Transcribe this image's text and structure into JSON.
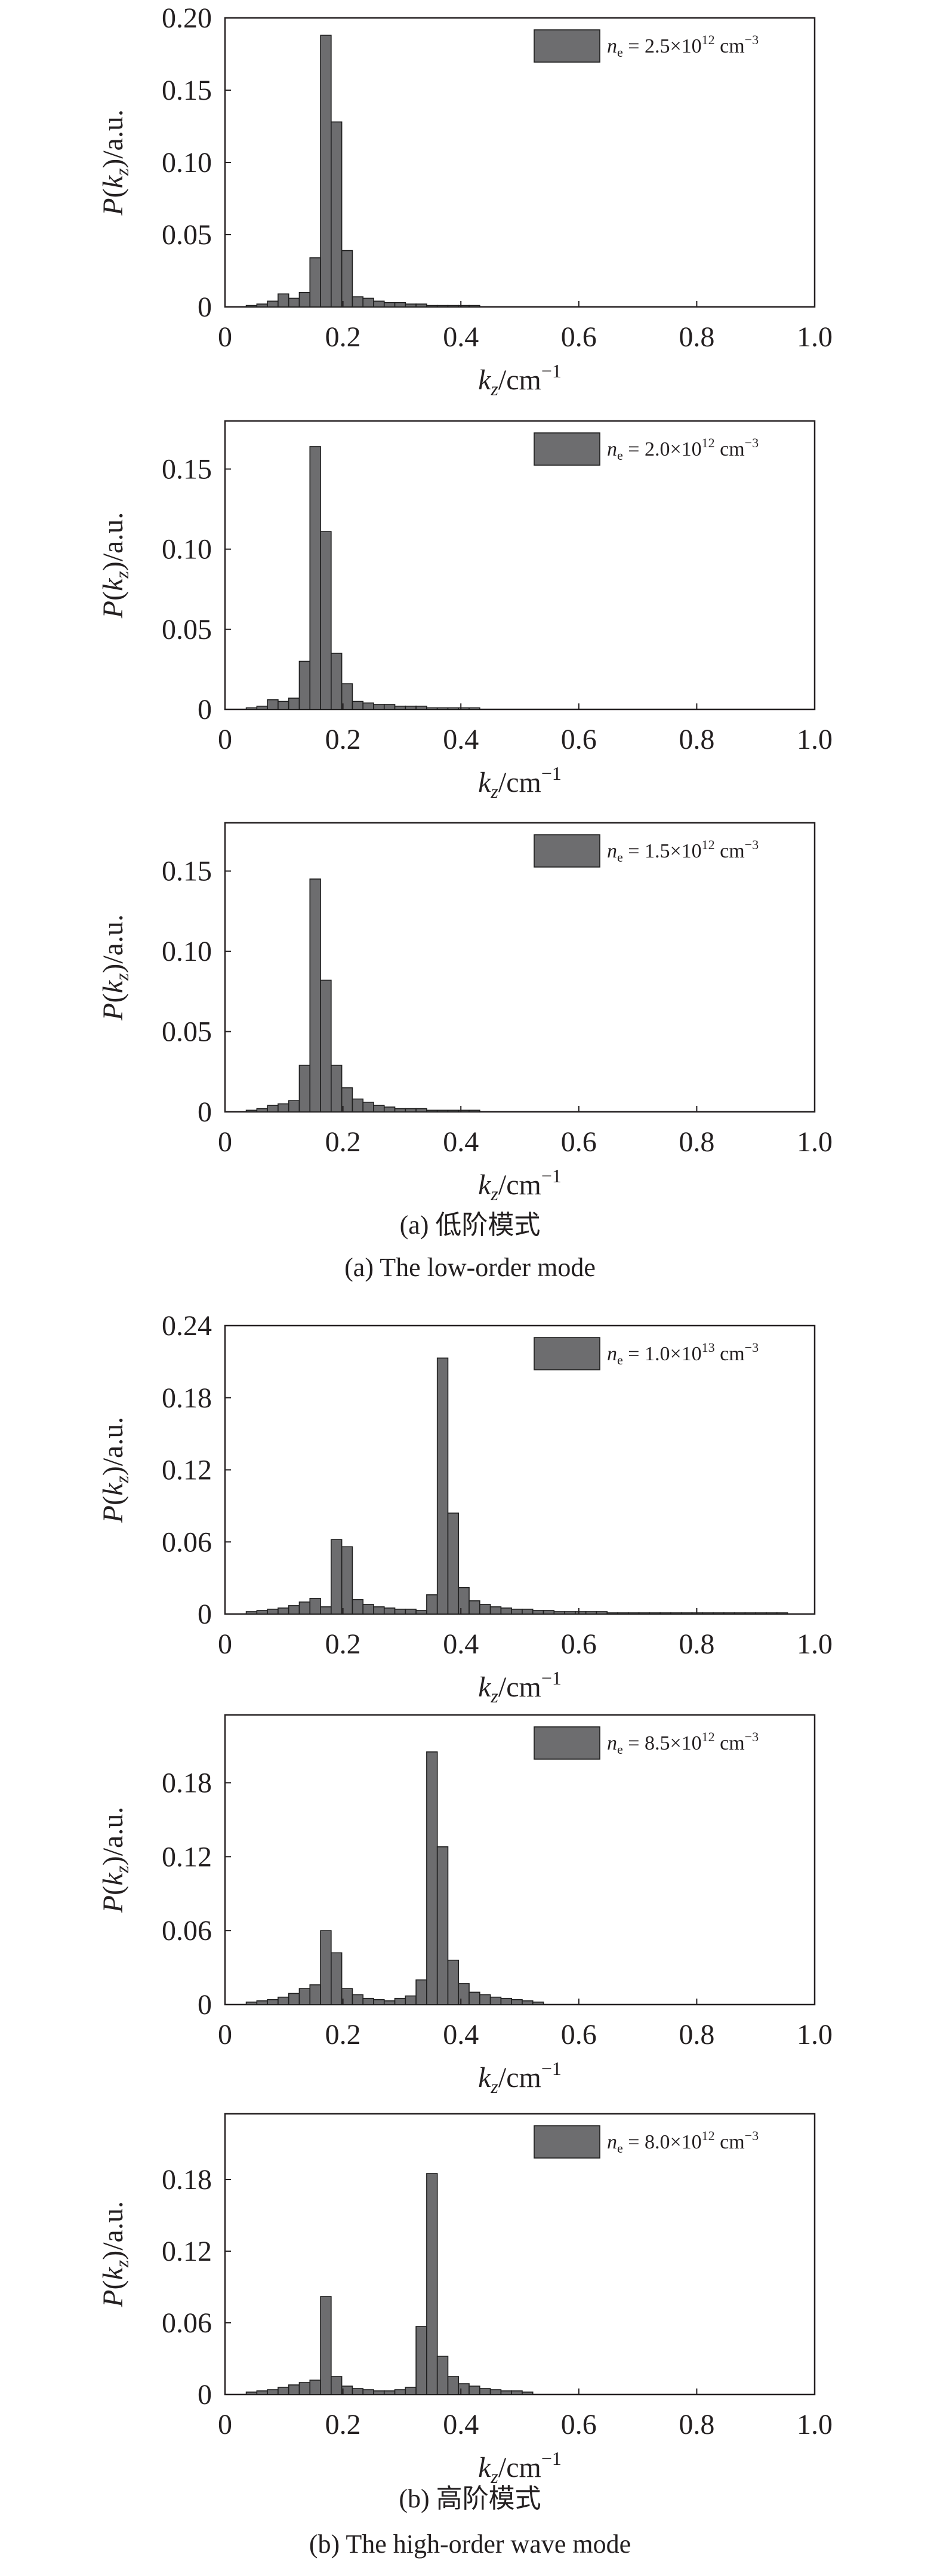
{
  "captions": {
    "a_cn": "(a) 低阶模式",
    "a_en": "(a) The low-order mode",
    "b_cn": "(b) 高阶模式",
    "b_en": "(b) The high-order wave mode"
  },
  "colors": {
    "bar_fill": "#6d6d6f",
    "bar_stroke": "#1f1f1f",
    "axis": "#231f20"
  },
  "chart_data": [
    {
      "type": "bar",
      "panel": "a-1",
      "xlim": [
        0,
        1.0
      ],
      "ylim": [
        0,
        0.2
      ],
      "xticks": [
        "0",
        "0.2",
        "0.4",
        "0.6",
        "0.8",
        "1.0"
      ],
      "yticks": [
        "0",
        "0.05",
        "0.10",
        "0.15",
        "0.20"
      ],
      "xlabel": "kz/cm−1",
      "ylabel": "P(kz)/a.u.",
      "legend": {
        "n": "n",
        "sub": "e",
        "text": " = 2.5×10",
        "exp": "12",
        "unit": " cm",
        "uexp": "−3"
      },
      "legend_placement": "top-right",
      "bin_width": 0.018,
      "x": [
        0.045,
        0.063,
        0.081,
        0.099,
        0.117,
        0.135,
        0.153,
        0.171,
        0.189,
        0.207,
        0.225,
        0.243,
        0.261,
        0.279,
        0.297,
        0.315,
        0.333,
        0.351,
        0.369,
        0.387,
        0.405,
        0.423
      ],
      "values": [
        0.001,
        0.002,
        0.004,
        0.009,
        0.006,
        0.01,
        0.034,
        0.188,
        0.128,
        0.039,
        0.007,
        0.006,
        0.004,
        0.003,
        0.003,
        0.002,
        0.002,
        0.001,
        0.001,
        0.001,
        0.001,
        0.001
      ]
    },
    {
      "type": "bar",
      "panel": "a-2",
      "xlim": [
        0,
        1.0
      ],
      "ylim": [
        0,
        0.18
      ],
      "xticks": [
        "0",
        "0.2",
        "0.4",
        "0.6",
        "0.8",
        "1.0"
      ],
      "yticks": [
        "0",
        "0.05",
        "0.10",
        "0.15"
      ],
      "xlabel": "kz/cm−1",
      "ylabel": "P(kz)/a.u.",
      "legend": {
        "n": "n",
        "sub": "e",
        "text": " = 2.0×10",
        "exp": "12",
        "unit": " cm",
        "uexp": "−3"
      },
      "legend_placement": "top-right",
      "bin_width": 0.018,
      "x": [
        0.045,
        0.063,
        0.081,
        0.099,
        0.117,
        0.135,
        0.153,
        0.171,
        0.189,
        0.207,
        0.225,
        0.243,
        0.261,
        0.279,
        0.297,
        0.315,
        0.333,
        0.351,
        0.369,
        0.387,
        0.405,
        0.423
      ],
      "values": [
        0.001,
        0.002,
        0.006,
        0.005,
        0.007,
        0.03,
        0.164,
        0.111,
        0.035,
        0.016,
        0.005,
        0.004,
        0.003,
        0.003,
        0.002,
        0.002,
        0.002,
        0.001,
        0.001,
        0.001,
        0.001,
        0.001
      ]
    },
    {
      "type": "bar",
      "panel": "a-3",
      "xlim": [
        0,
        1.0
      ],
      "ylim": [
        0,
        0.18
      ],
      "xticks": [
        "0",
        "0.2",
        "0.4",
        "0.6",
        "0.8",
        "1.0"
      ],
      "yticks": [
        "0",
        "0.05",
        "0.10",
        "0.15"
      ],
      "xlabel": "kz/cm−1",
      "ylabel": "P(kz)/a.u.",
      "legend": {
        "n": "n",
        "sub": "e",
        "text": " = 1.5×10",
        "exp": "12",
        "unit": " cm",
        "uexp": "−3"
      },
      "legend_placement": "top-right",
      "bin_width": 0.018,
      "x": [
        0.045,
        0.063,
        0.081,
        0.099,
        0.117,
        0.135,
        0.153,
        0.171,
        0.189,
        0.207,
        0.225,
        0.243,
        0.261,
        0.279,
        0.297,
        0.315,
        0.333,
        0.351,
        0.369,
        0.387,
        0.405,
        0.423
      ],
      "values": [
        0.001,
        0.002,
        0.004,
        0.005,
        0.007,
        0.029,
        0.145,
        0.082,
        0.029,
        0.015,
        0.008,
        0.006,
        0.004,
        0.003,
        0.002,
        0.002,
        0.002,
        0.001,
        0.001,
        0.001,
        0.001,
        0.001
      ]
    },
    {
      "type": "bar",
      "panel": "b-1",
      "xlim": [
        0,
        1.0
      ],
      "ylim": [
        0,
        0.24
      ],
      "xticks": [
        "0",
        "0.2",
        "0.4",
        "0.6",
        "0.8",
        "1.0"
      ],
      "yticks": [
        "0",
        "0.06",
        "0.12",
        "0.18",
        "0.24"
      ],
      "xlabel": "kz/cm−1",
      "ylabel": "P(kz)/a.u.",
      "legend": {
        "n": "n",
        "sub": "e",
        "text": " = 1.0×10",
        "exp": "13",
        "unit": " cm",
        "uexp": "−3"
      },
      "legend_placement": "top-right",
      "bin_width": 0.018,
      "x": [
        0.045,
        0.063,
        0.081,
        0.099,
        0.117,
        0.135,
        0.153,
        0.171,
        0.189,
        0.207,
        0.225,
        0.243,
        0.261,
        0.279,
        0.297,
        0.315,
        0.333,
        0.351,
        0.369,
        0.387,
        0.405,
        0.423,
        0.441,
        0.459,
        0.477,
        0.495,
        0.513,
        0.531,
        0.549,
        0.567,
        0.585,
        0.603,
        0.621,
        0.639,
        0.657,
        0.675,
        0.693,
        0.711,
        0.729,
        0.747,
        0.765,
        0.783,
        0.801,
        0.819,
        0.837,
        0.855,
        0.873,
        0.891,
        0.909,
        0.927,
        0.945
      ],
      "values": [
        0.002,
        0.003,
        0.004,
        0.005,
        0.007,
        0.01,
        0.013,
        0.006,
        0.062,
        0.056,
        0.012,
        0.008,
        0.006,
        0.005,
        0.004,
        0.004,
        0.003,
        0.016,
        0.213,
        0.084,
        0.022,
        0.011,
        0.008,
        0.006,
        0.005,
        0.004,
        0.004,
        0.003,
        0.003,
        0.002,
        0.002,
        0.002,
        0.002,
        0.002,
        0.001,
        0.001,
        0.001,
        0.001,
        0.001,
        0.001,
        0.001,
        0.001,
        0.001,
        0.001,
        0.001,
        0.001,
        0.001,
        0.001,
        0.001,
        0.001,
        0.001
      ]
    },
    {
      "type": "bar",
      "panel": "b-2",
      "xlim": [
        0,
        1.0
      ],
      "ylim": [
        0,
        0.235
      ],
      "xticks": [
        "0",
        "0.2",
        "0.4",
        "0.6",
        "0.8",
        "1.0"
      ],
      "yticks": [
        "0",
        "0.06",
        "0.12",
        "0.18"
      ],
      "xlabel": "kz/cm−1",
      "ylabel": "P(kz)/a.u.",
      "legend": {
        "n": "n",
        "sub": "e",
        "text": " = 8.5×10",
        "exp": "12",
        "unit": " cm",
        "uexp": "−3"
      },
      "legend_placement": "top-right",
      "bin_width": 0.018,
      "x": [
        0.045,
        0.063,
        0.081,
        0.099,
        0.117,
        0.135,
        0.153,
        0.171,
        0.189,
        0.207,
        0.225,
        0.243,
        0.261,
        0.279,
        0.297,
        0.315,
        0.333,
        0.351,
        0.369,
        0.387,
        0.405,
        0.423,
        0.441,
        0.459,
        0.477,
        0.495,
        0.513,
        0.531
      ],
      "values": [
        0.002,
        0.003,
        0.004,
        0.006,
        0.009,
        0.013,
        0.016,
        0.06,
        0.042,
        0.013,
        0.008,
        0.005,
        0.004,
        0.003,
        0.005,
        0.007,
        0.02,
        0.205,
        0.128,
        0.036,
        0.017,
        0.01,
        0.008,
        0.006,
        0.005,
        0.004,
        0.003,
        0.002
      ]
    },
    {
      "type": "bar",
      "panel": "b-3",
      "xlim": [
        0,
        1.0
      ],
      "ylim": [
        0,
        0.235
      ],
      "xticks": [
        "0",
        "0.2",
        "0.4",
        "0.6",
        "0.8",
        "1.0"
      ],
      "yticks": [
        "0",
        "0.06",
        "0.12",
        "0.18"
      ],
      "xlabel": "kz/cm−1",
      "ylabel": "P(kz)/a.u.",
      "legend": {
        "n": "n",
        "sub": "e",
        "text": " = 8.0×10",
        "exp": "12",
        "unit": " cm",
        "uexp": "−3"
      },
      "legend_placement": "top-right",
      "bin_width": 0.018,
      "x": [
        0.045,
        0.063,
        0.081,
        0.099,
        0.117,
        0.135,
        0.153,
        0.171,
        0.189,
        0.207,
        0.225,
        0.243,
        0.261,
        0.279,
        0.297,
        0.315,
        0.333,
        0.351,
        0.369,
        0.387,
        0.405,
        0.423,
        0.441,
        0.459,
        0.477,
        0.495,
        0.513
      ],
      "values": [
        0.002,
        0.003,
        0.004,
        0.006,
        0.008,
        0.01,
        0.012,
        0.082,
        0.015,
        0.007,
        0.005,
        0.004,
        0.003,
        0.003,
        0.004,
        0.006,
        0.057,
        0.185,
        0.032,
        0.015,
        0.009,
        0.007,
        0.005,
        0.004,
        0.003,
        0.003,
        0.002
      ]
    }
  ]
}
